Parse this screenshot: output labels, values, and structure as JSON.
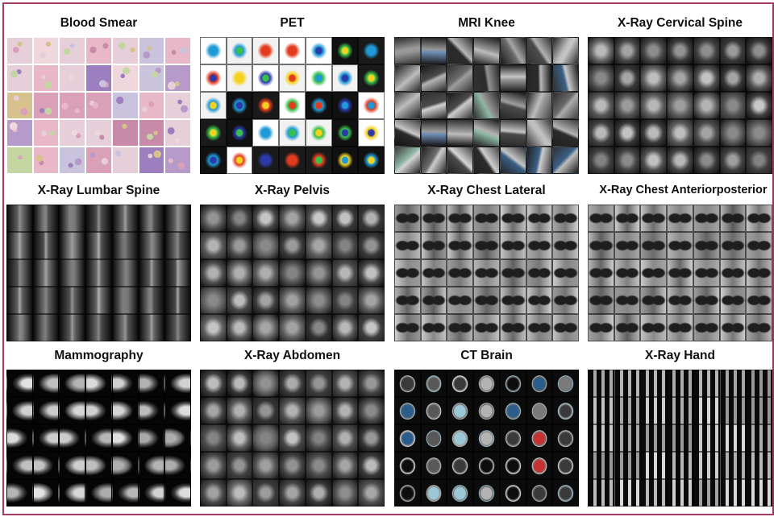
{
  "figure": {
    "panels": [
      {
        "title": "Blood Smear",
        "style": "blood"
      },
      {
        "title": "PET",
        "style": "pet"
      },
      {
        "title": "MRI Knee",
        "style": "mri"
      },
      {
        "title": "X-Ray Cervical Spine",
        "style": "xray"
      },
      {
        "title": "X-Ray Lumbar Spine",
        "style": "xraydark"
      },
      {
        "title": "X-Ray Pelvis",
        "style": "xray"
      },
      {
        "title": "X-Ray Chest Lateral",
        "style": "chest"
      },
      {
        "title": "X-Ray Chest Anteriorposterior",
        "style": "chest"
      },
      {
        "title": "Mammography",
        "style": "mammo"
      },
      {
        "title": "X-Ray Abdomen",
        "style": "xray"
      },
      {
        "title": "CT Brain",
        "style": "ct"
      },
      {
        "title": "X-Ray Hand",
        "style": "hand"
      }
    ],
    "colors": {
      "border": "#a33a63",
      "blood": [
        "#e8b7c8",
        "#d9a0b8",
        "#c9c3dd",
        "#b69ac9",
        "#e6cfd8",
        "#d7c28e",
        "#c4d6a2",
        "#9d7fbf",
        "#f0d7de",
        "#c78aa8"
      ],
      "pet": [
        "#1a1a1a",
        "#ffffff",
        "#f2f2f2",
        "#2a3aa8",
        "#1f9ad6",
        "#39c04a",
        "#f4d21f",
        "#e23b1e",
        "#111111",
        "#e9e9e9"
      ],
      "mri": [
        "#2b2b2b",
        "#6b6b6b",
        "#9a9a9a",
        "#4a4a4a",
        "#8fb7a6",
        "#6f8fb8",
        "#3b5f86",
        "#bdbdbd"
      ],
      "ct": [
        "#0d0d0d",
        "#3a3a3a",
        "#7a7a7a",
        "#b3b3b3",
        "#2a5c8c",
        "#c63232",
        "#9bc7d6",
        "#585858"
      ]
    }
  }
}
